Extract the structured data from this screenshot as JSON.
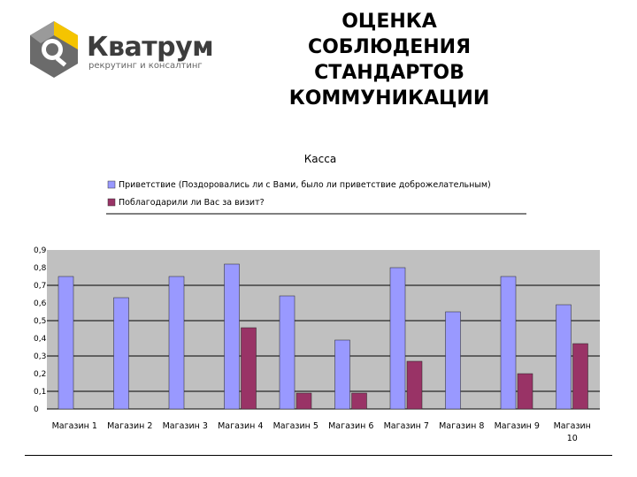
{
  "brand": {
    "name": "Кватрум",
    "tagline": "рекрутинг и консалтинг",
    "colors": {
      "yellow": "#f5c400",
      "gray": "#555555"
    }
  },
  "slide": {
    "title_lines": [
      "ОЦЕНКА",
      "СОБЛЮДЕНИЯ",
      "СТАНДАРТОВ",
      "КОММУНИКАЦИИ"
    ]
  },
  "chart_data": {
    "type": "bar",
    "title": "Касса",
    "categories": [
      "Магазин 1",
      "Магазин 2",
      "Магазин 3",
      "Магазин 4",
      "Магазин 5",
      "Магазин 6",
      "Магазин 7",
      "Магазин 8",
      "Магазин 9",
      "Магазин 10"
    ],
    "series": [
      {
        "name": "Приветствие (Поздоровались ли с Вами, было ли приветствие доброжелательным)",
        "color": "#9999ff",
        "values": [
          0.75,
          0.63,
          0.75,
          0.82,
          0.64,
          0.39,
          0.8,
          0.55,
          0.75,
          0.59
        ]
      },
      {
        "name": "Поблагодарили ли Вас за визит?",
        "color": "#993366",
        "values": [
          null,
          null,
          null,
          0.46,
          0.09,
          0.09,
          0.27,
          null,
          0.2,
          0.37
        ]
      }
    ],
    "y_ticks": [
      "0",
      "0,1",
      "0,2",
      "0,3",
      "0,4",
      "0,5",
      "0,6",
      "0,7",
      "0,8",
      "0,9"
    ],
    "ylim": [
      0,
      0.9
    ],
    "plot_background": "#c0c0c0",
    "grid": true,
    "legend_position": "top"
  }
}
